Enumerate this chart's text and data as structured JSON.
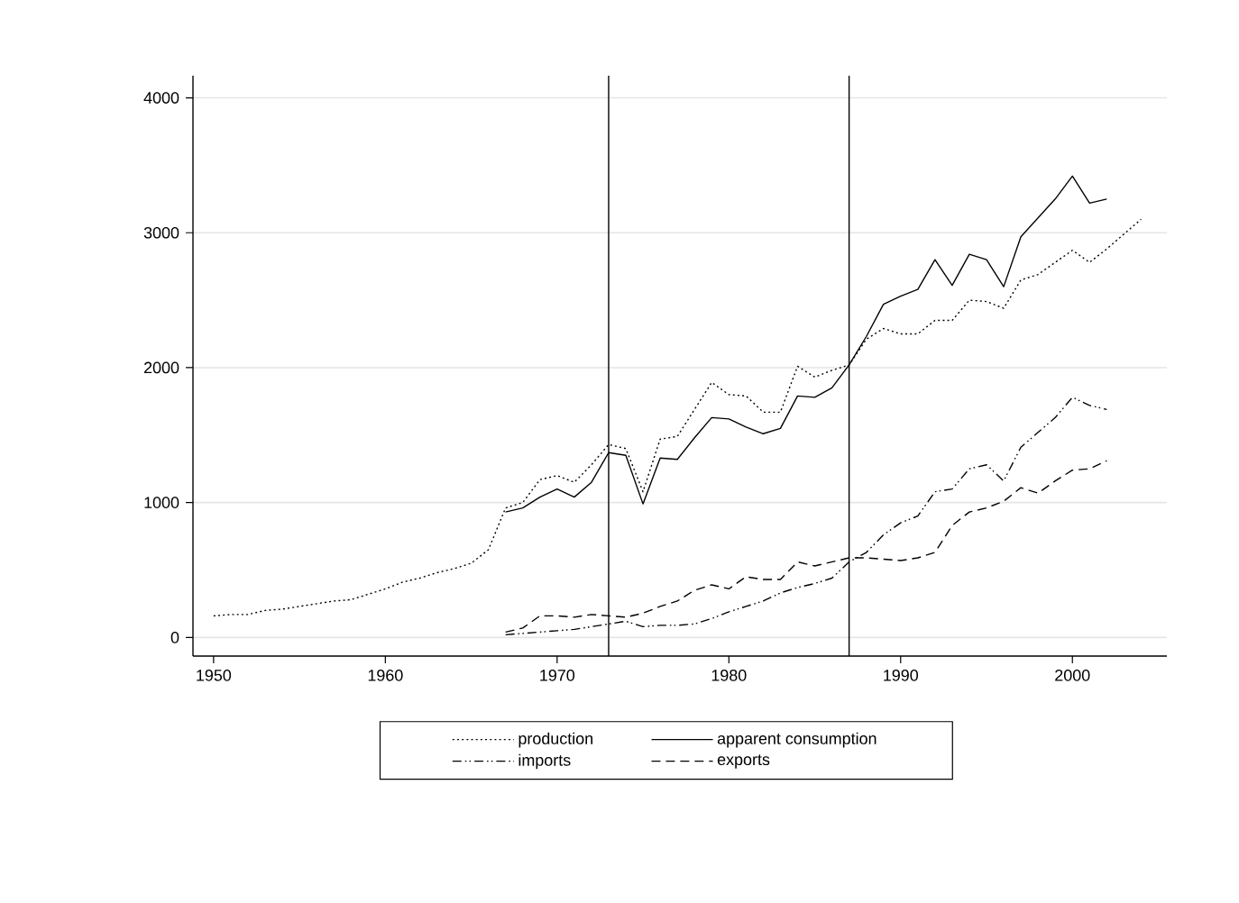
{
  "chart_data": {
    "type": "line",
    "xlim": [
      1948.8,
      2005.5
    ],
    "ylim": [
      -138,
      4164
    ],
    "xticks": [
      1950,
      1960,
      1970,
      1980,
      1990,
      2000
    ],
    "yticks": [
      0,
      1000,
      2000,
      3000,
      4000
    ],
    "grid": "y",
    "legend": "bottom",
    "marker": "none",
    "ref_lines": [
      {
        "axis": "x",
        "value": 1973,
        "color": "#000000"
      },
      {
        "axis": "x",
        "value": 1987,
        "color": "#000000"
      }
    ],
    "series": [
      {
        "name": "production",
        "color": "#000000",
        "line_style": "dotted",
        "x": [
          1950,
          1951,
          1952,
          1953,
          1954,
          1955,
          1956,
          1957,
          1958,
          1959,
          1960,
          1961,
          1962,
          1963,
          1964,
          1965,
          1966,
          1967,
          1968,
          1969,
          1970,
          1971,
          1972,
          1973,
          1974,
          1975,
          1976,
          1977,
          1978,
          1979,
          1980,
          1981,
          1982,
          1983,
          1984,
          1985,
          1986,
          1987,
          1988,
          1989,
          1990,
          1991,
          1992,
          1993,
          1994,
          1995,
          1996,
          1997,
          1998,
          1999,
          2000,
          2001,
          2002,
          2003,
          2004
        ],
        "values": [
          160,
          170,
          170,
          200,
          210,
          230,
          250,
          270,
          280,
          320,
          360,
          410,
          440,
          480,
          510,
          550,
          650,
          960,
          1000,
          1170,
          1200,
          1150,
          1280,
          1430,
          1400,
          1080,
          1470,
          1490,
          1690,
          1890,
          1800,
          1790,
          1670,
          1670,
          2010,
          1930,
          1980,
          2020,
          2210,
          2290,
          2250,
          2250,
          2350,
          2350,
          2500,
          2490,
          2440,
          2650,
          2690,
          2780,
          2870,
          2780,
          2880,
          2990,
          3100
        ]
      },
      {
        "name": "apparent consumption",
        "color": "#000000",
        "line_style": "solid",
        "x": [
          1967,
          1968,
          1969,
          1970,
          1971,
          1972,
          1973,
          1974,
          1975,
          1976,
          1977,
          1978,
          1979,
          1980,
          1981,
          1982,
          1983,
          1984,
          1985,
          1986,
          1987,
          1988,
          1989,
          1990,
          1991,
          1992,
          1993,
          1994,
          1995,
          1996,
          1997,
          1998,
          1999,
          2000,
          2001,
          2002
        ],
        "values": [
          930,
          960,
          1040,
          1100,
          1040,
          1150,
          1370,
          1350,
          990,
          1330,
          1320,
          1480,
          1630,
          1620,
          1560,
          1510,
          1550,
          1790,
          1780,
          1850,
          2020,
          2230,
          2470,
          2530,
          2580,
          2800,
          2610,
          2840,
          2800,
          2600,
          2970,
          3110,
          3250,
          3420,
          3220,
          3250
        ]
      },
      {
        "name": "imports",
        "color": "#000000",
        "line_style": "dash dot dot",
        "x": [
          1967,
          1968,
          1969,
          1970,
          1971,
          1972,
          1973,
          1974,
          1975,
          1976,
          1977,
          1978,
          1979,
          1980,
          1981,
          1982,
          1983,
          1984,
          1985,
          1986,
          1987,
          1988,
          1989,
          1990,
          1991,
          1992,
          1993,
          1994,
          1995,
          1996,
          1997,
          1998,
          1999,
          2000,
          2001,
          2002
        ],
        "values": [
          20,
          30,
          40,
          50,
          60,
          80,
          100,
          120,
          80,
          90,
          90,
          100,
          140,
          190,
          230,
          270,
          330,
          370,
          400,
          440,
          560,
          630,
          760,
          850,
          900,
          1080,
          1100,
          1250,
          1280,
          1160,
          1410,
          1520,
          1630,
          1780,
          1720,
          1690
        ]
      },
      {
        "name": "exports",
        "color": "#000000",
        "line_style": "dashed",
        "x": [
          1967,
          1968,
          1969,
          1970,
          1971,
          1972,
          1973,
          1974,
          1975,
          1976,
          1977,
          1978,
          1979,
          1980,
          1981,
          1982,
          1983,
          1984,
          1985,
          1986,
          1987,
          1988,
          1989,
          1990,
          1991,
          1992,
          1993,
          1994,
          1995,
          1996,
          1997,
          1998,
          1999,
          2000,
          2001,
          2002
        ],
        "values": [
          40,
          70,
          160,
          160,
          150,
          170,
          160,
          150,
          180,
          230,
          270,
          350,
          390,
          360,
          450,
          430,
          430,
          560,
          530,
          560,
          590,
          590,
          580,
          570,
          590,
          630,
          830,
          930,
          960,
          1010,
          1110,
          1070,
          1160,
          1240,
          1250,
          1310
        ]
      }
    ]
  }
}
